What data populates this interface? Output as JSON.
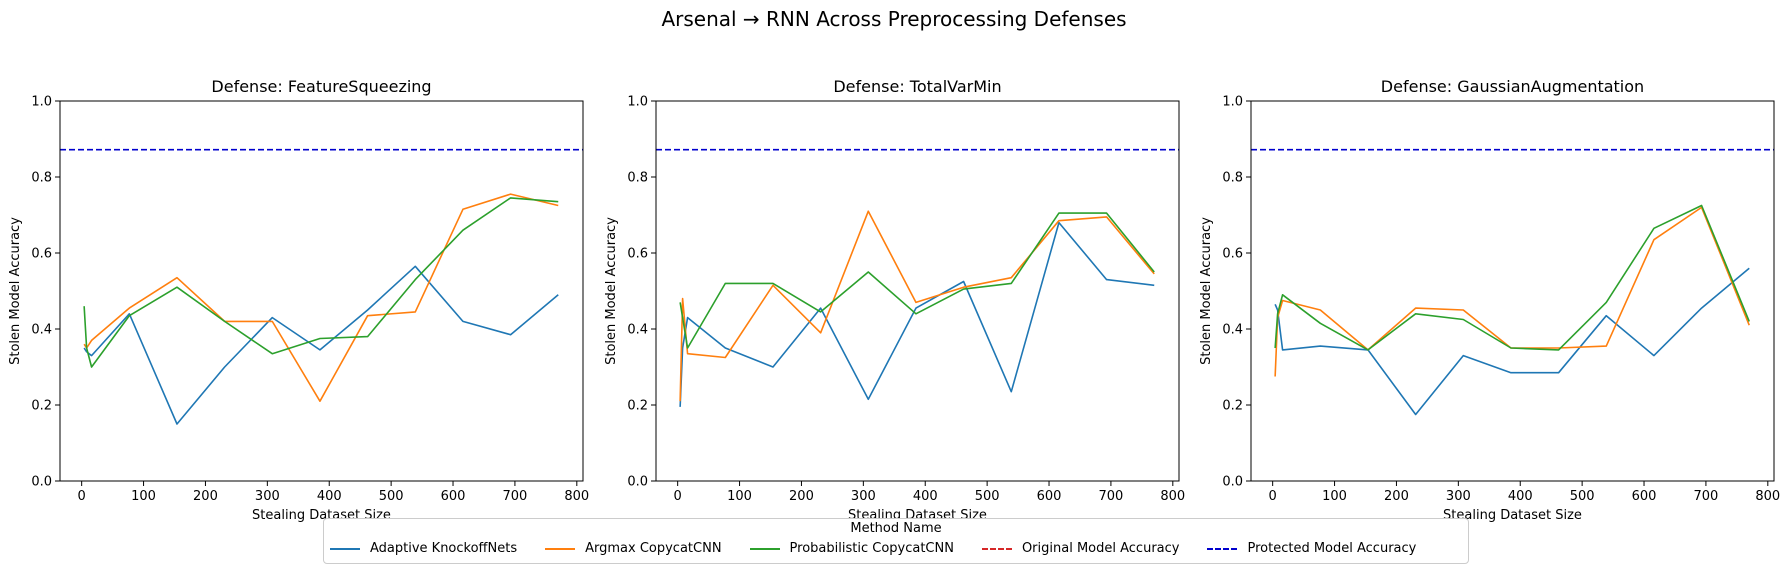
{
  "figure_title": "Arsenal → RNN Across Preprocessing Defenses",
  "legend": {
    "title": "Method Name",
    "items": [
      {
        "label": "Adaptive KnockoffNets",
        "color": "#1f77b4",
        "style": "solid"
      },
      {
        "label": "Argmax CopycatCNN",
        "color": "#ff7f0e",
        "style": "solid"
      },
      {
        "label": "Probabilistic CopycatCNN",
        "color": "#2ca02c",
        "style": "solid"
      },
      {
        "label": "Original Model Accuracy",
        "color": "#d62728",
        "style": "dashed"
      },
      {
        "label": "Protected Model Accuracy",
        "color": "#0000cd",
        "style": "dashed"
      }
    ]
  },
  "chart_data": [
    {
      "type": "line",
      "title": "Defense: FeatureSqueezing",
      "xlabel": "Stealing Dataset Size",
      "ylabel": "Stolen Model Accuracy",
      "xlim": [
        -35,
        810
      ],
      "ylim": [
        0,
        1
      ],
      "xticks": [
        0,
        100,
        200,
        300,
        400,
        500,
        600,
        700,
        800
      ],
      "yticks": [
        0.0,
        0.2,
        0.4,
        0.6,
        0.8,
        1.0
      ],
      "x": [
        4,
        8,
        16,
        77,
        154,
        231,
        308,
        385,
        462,
        539,
        616,
        693,
        770
      ],
      "series": [
        {
          "name": "Adaptive KnockoffNets",
          "values": [
            0.35,
            0.34,
            0.33,
            0.44,
            0.15,
            0.3,
            0.43,
            0.345,
            0.45,
            0.565,
            0.42,
            0.385,
            0.49
          ]
        },
        {
          "name": "Argmax CopycatCNN",
          "values": [
            0.36,
            0.35,
            0.37,
            0.455,
            0.535,
            0.42,
            0.42,
            0.21,
            0.435,
            0.445,
            0.715,
            0.755,
            0.725
          ]
        },
        {
          "name": "Probabilistic CopycatCNN",
          "values": [
            0.46,
            0.35,
            0.3,
            0.435,
            0.51,
            0.42,
            0.335,
            0.375,
            0.38,
            0.53,
            0.66,
            0.745,
            0.735
          ]
        }
      ],
      "hlines": [
        {
          "name": "Protected Model Accuracy",
          "value": 0.872
        }
      ]
    },
    {
      "type": "line",
      "title": "Defense: TotalVarMin",
      "xlabel": "Stealing Dataset Size",
      "ylabel": "Stolen Model Accuracy",
      "xlim": [
        -35,
        810
      ],
      "ylim": [
        0,
        1
      ],
      "xticks": [
        0,
        100,
        200,
        300,
        400,
        500,
        600,
        700,
        800
      ],
      "yticks": [
        0.0,
        0.2,
        0.4,
        0.6,
        0.8,
        1.0
      ],
      "x": [
        4,
        8,
        16,
        77,
        154,
        231,
        308,
        385,
        462,
        539,
        616,
        693,
        770
      ],
      "series": [
        {
          "name": "Adaptive KnockoffNets",
          "values": [
            0.195,
            0.35,
            0.43,
            0.35,
            0.3,
            0.455,
            0.215,
            0.455,
            0.525,
            0.235,
            0.68,
            0.53,
            0.515
          ]
        },
        {
          "name": "Argmax CopycatCNN",
          "values": [
            0.21,
            0.48,
            0.335,
            0.325,
            0.515,
            0.39,
            0.71,
            0.47,
            0.51,
            0.535,
            0.685,
            0.695,
            0.545
          ]
        },
        {
          "name": "Probabilistic CopycatCNN",
          "values": [
            0.47,
            0.43,
            0.35,
            0.52,
            0.52,
            0.445,
            0.55,
            0.44,
            0.505,
            0.52,
            0.705,
            0.705,
            0.55
          ]
        }
      ],
      "hlines": [
        {
          "name": "Protected Model Accuracy",
          "value": 0.872
        }
      ]
    },
    {
      "type": "line",
      "title": "Defense: GaussianAugmentation",
      "xlabel": "Stealing Dataset Size",
      "ylabel": "Stolen Model Accuracy",
      "xlim": [
        -35,
        810
      ],
      "ylim": [
        0,
        1
      ],
      "xticks": [
        0,
        100,
        200,
        300,
        400,
        500,
        600,
        700,
        800
      ],
      "yticks": [
        0.0,
        0.2,
        0.4,
        0.6,
        0.8,
        1.0
      ],
      "x": [
        4,
        8,
        16,
        77,
        154,
        231,
        308,
        385,
        462,
        539,
        616,
        693,
        770
      ],
      "series": [
        {
          "name": "Adaptive KnockoffNets",
          "values": [
            0.465,
            0.45,
            0.345,
            0.355,
            0.345,
            0.175,
            0.33,
            0.285,
            0.285,
            0.435,
            0.33,
            0.455,
            0.56
          ]
        },
        {
          "name": "Argmax CopycatCNN",
          "values": [
            0.275,
            0.43,
            0.475,
            0.45,
            0.345,
            0.455,
            0.45,
            0.35,
            0.35,
            0.355,
            0.635,
            0.72,
            0.41
          ]
        },
        {
          "name": "Probabilistic CopycatCNN",
          "values": [
            0.35,
            0.44,
            0.49,
            0.415,
            0.345,
            0.44,
            0.425,
            0.35,
            0.345,
            0.47,
            0.665,
            0.725,
            0.42
          ]
        }
      ],
      "hlines": [
        {
          "name": "Protected Model Accuracy",
          "value": 0.872
        }
      ]
    }
  ]
}
